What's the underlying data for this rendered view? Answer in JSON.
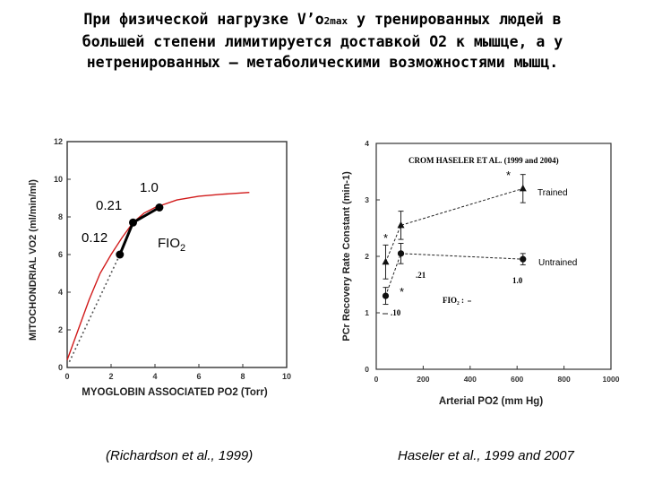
{
  "heading": {
    "line1_a": "При физической нагрузке V’o",
    "line1_sub": "2max",
    "line1_b": " у тренированных людей в",
    "line2": "большей степени лимитируется доставкой О2 к мышце, а у",
    "line3": "нетренированных – метаболическими возможностями мышц."
  },
  "left_chart_labels": {
    "y_title": "MITOCHONDRIAL VO2 (ml/min/ml)",
    "x_title": "MYOGLOBIN ASSOCIATED PO2 (Torr)",
    "lbl_021": "0.21",
    "lbl_012": "0.12",
    "lbl_10": "1.0",
    "fio2_a": "FIO",
    "fio2_sub": "2"
  },
  "right_chart_labels": {
    "y_title": "PCr Recovery Rate Constant (min-1)",
    "x_title": "Arterial PO2 (mm Hg)",
    "header": "CROM HASELER ET AL. (1999 and 2004)",
    "trained": "Trained",
    "untrained": "Untrained",
    "v_021": ".21",
    "v_10": "1.0",
    "v_010": ".10",
    "fio2": "FIO₂ :",
    "star": "*"
  },
  "citations": {
    "left": "(Richardson et al., 1999)",
    "right": "Haseler et al., 1999 and 2007"
  },
  "chart_data": [
    {
      "type": "line",
      "xlabel": "MYOGLOBIN ASSOCIATED PO2 (Torr)",
      "ylabel": "MITOCHONDRIAL VO2 (ml/min/ml)",
      "xlim": [
        0,
        10
      ],
      "ylim": [
        0,
        12
      ],
      "x_ticks": [
        "0",
        "2",
        "4",
        "6",
        "8",
        "10"
      ],
      "y_ticks": [
        "0",
        "2",
        "4",
        "6",
        "8",
        "10",
        "12"
      ],
      "series": [
        {
          "style": "curve",
          "color": "#d11a1a",
          "x": [
            0,
            0.5,
            1.0,
            1.5,
            2.0,
            2.5,
            3.0,
            3.5,
            4.0,
            5.0,
            6.0,
            7.0,
            8.3
          ],
          "y": [
            0.4,
            2.0,
            3.6,
            5.0,
            6.0,
            6.9,
            7.7,
            8.2,
            8.5,
            8.9,
            9.1,
            9.2,
            9.3
          ]
        },
        {
          "style": "measured",
          "color": "#000000",
          "points": [
            {
              "x": 2.4,
              "y": 6.0,
              "fio2": "0.12"
            },
            {
              "x": 3.0,
              "y": 7.7,
              "fio2": "0.21"
            },
            {
              "x": 4.2,
              "y": 8.5,
              "fio2": "1.0"
            }
          ]
        },
        {
          "style": "dotted",
          "color": "#555555",
          "x": [
            0.1,
            2.4
          ],
          "y": [
            0.3,
            6.0
          ]
        }
      ]
    },
    {
      "type": "line",
      "xlabel": "Arterial PO2 (mm Hg)",
      "ylabel": "PCr Recovery Rate Constant (min-1)",
      "xlim": [
        0,
        1000
      ],
      "ylim": [
        0,
        4
      ],
      "x_ticks": [
        "0",
        "200",
        "400",
        "600",
        "800",
        "1000"
      ],
      "y_ticks": [
        "0",
        "1",
        "2",
        "3",
        "4"
      ],
      "series": [
        {
          "name": "Trained",
          "marker": "triangle",
          "x": [
            40,
            105,
            625
          ],
          "y": [
            1.9,
            2.55,
            3.2
          ],
          "err": [
            0.3,
            0.25,
            0.25
          ],
          "fio2": [
            ".10",
            ".21",
            "1.0"
          ]
        },
        {
          "name": "Untrained",
          "marker": "circle",
          "x": [
            40,
            105,
            625
          ],
          "y": [
            1.3,
            2.05,
            1.95
          ],
          "err": [
            0.15,
            0.18,
            0.1
          ],
          "fio2": [
            ".10",
            ".21",
            "1.0"
          ]
        }
      ]
    }
  ]
}
